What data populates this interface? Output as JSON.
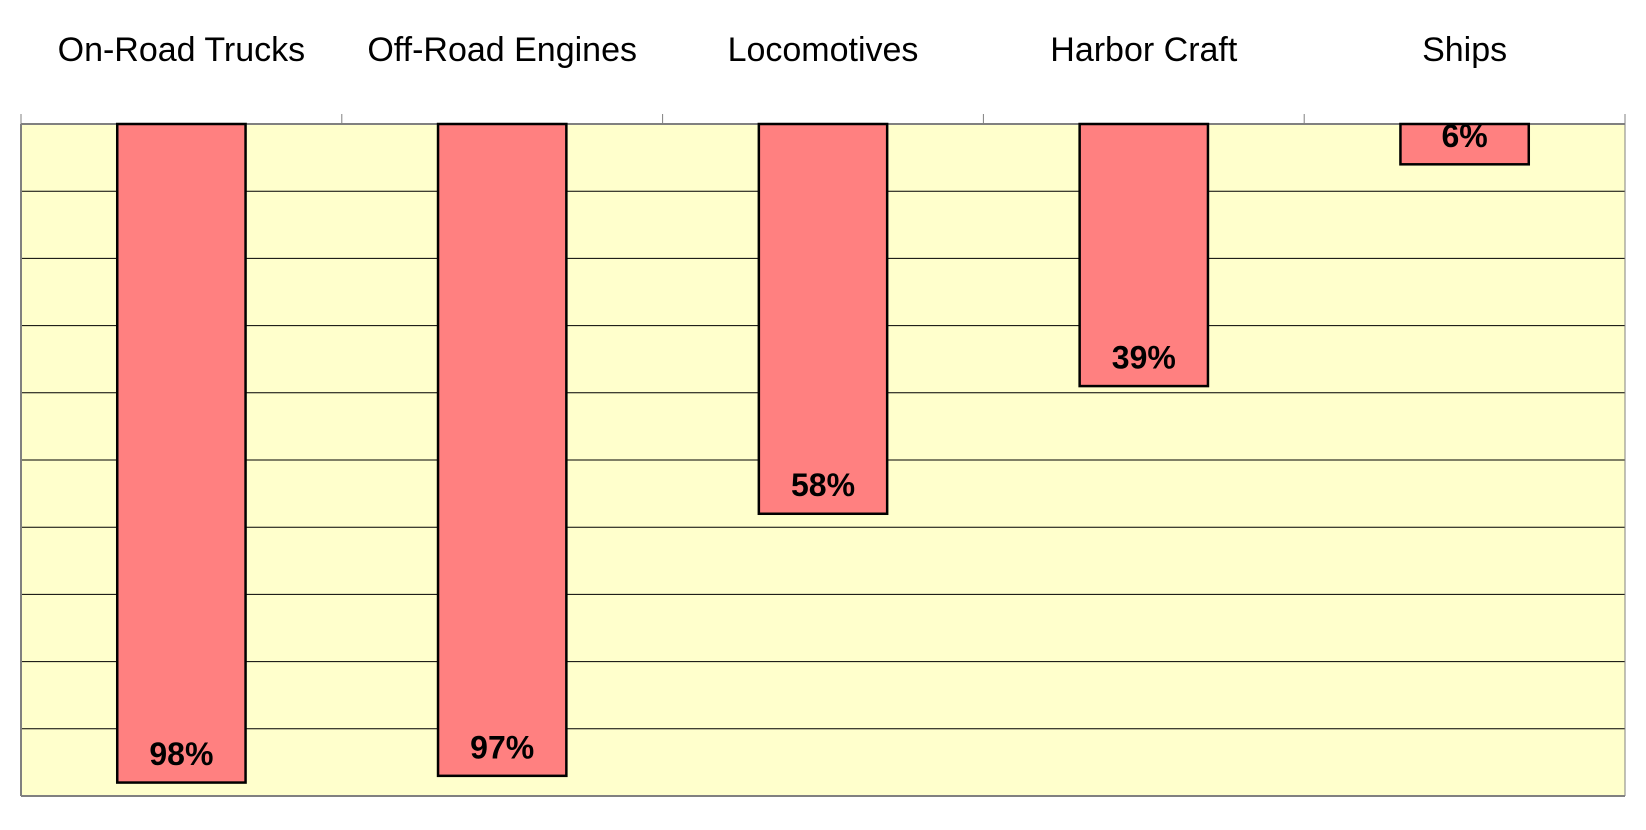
{
  "chart_data": {
    "type": "bar",
    "categories": [
      "On-Road Trucks",
      "Off-Road Engines",
      "Locomotives",
      "Harbor Craft",
      "Ships"
    ],
    "values": [
      98,
      97,
      58,
      39,
      6
    ],
    "value_labels": [
      "98%",
      "97%",
      "58%",
      "39%",
      "6%"
    ],
    "color": "#ff8080",
    "ylim": [
      0,
      100
    ],
    "yticks": [
      0,
      10,
      20,
      30,
      40,
      50,
      60,
      70,
      80,
      90,
      100
    ],
    "y_reversed": true,
    "grid": true,
    "x_axis_position": "top"
  }
}
